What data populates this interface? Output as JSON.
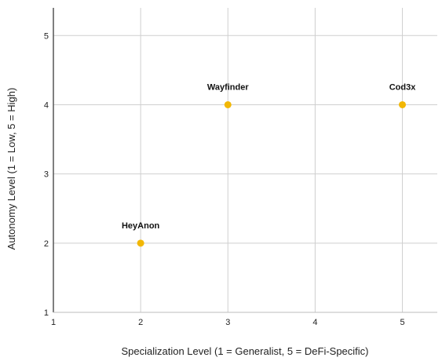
{
  "chart_data": {
    "type": "scatter",
    "xlabel": "Specialization Level (1 = Generalist, 5 = DeFi-Specific)",
    "ylabel": "Autonomy Level (1 = Low, 5 = High)",
    "xlim": [
      1,
      5.4
    ],
    "ylim": [
      1,
      5.4
    ],
    "xticks": [
      1,
      2,
      3,
      4,
      5
    ],
    "yticks": [
      1,
      2,
      3,
      4,
      5
    ],
    "grid": true,
    "marker_color": "#F2B705",
    "points": [
      {
        "label": "HeyAnon",
        "x": 2,
        "y": 2
      },
      {
        "label": "Wayfinder",
        "x": 3,
        "y": 4
      },
      {
        "label": "Cod3x",
        "x": 5,
        "y": 4
      }
    ]
  }
}
